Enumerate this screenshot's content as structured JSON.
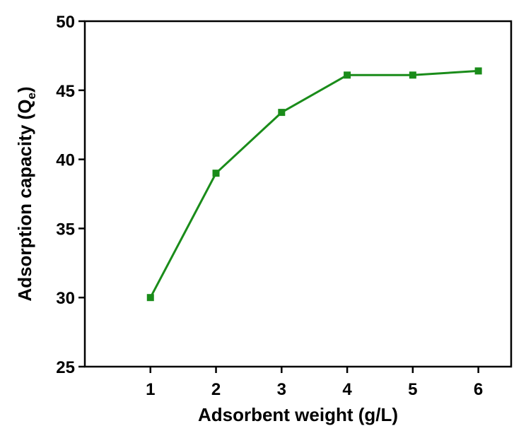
{
  "chart_data": {
    "type": "line",
    "title": "",
    "xlabel": "Adsorbent weight (g/L)",
    "ylabel_main": "Adsorption capacity (Q",
    "ylabel_sub": "e",
    "ylabel_close": ")",
    "xlim": [
      0,
      6.5
    ],
    "ylim": [
      25,
      50
    ],
    "xticks": [
      1,
      2,
      3,
      4,
      5,
      6
    ],
    "yticks": [
      25,
      30,
      35,
      40,
      45,
      50
    ],
    "grid": false,
    "series": [
      {
        "name": "Adsorption capacity",
        "color": "#1a8c1a",
        "marker": "square",
        "x": [
          1,
          2,
          3,
          4,
          5,
          6
        ],
        "y": [
          30.0,
          39.0,
          43.4,
          46.1,
          46.1,
          46.4
        ]
      }
    ]
  }
}
